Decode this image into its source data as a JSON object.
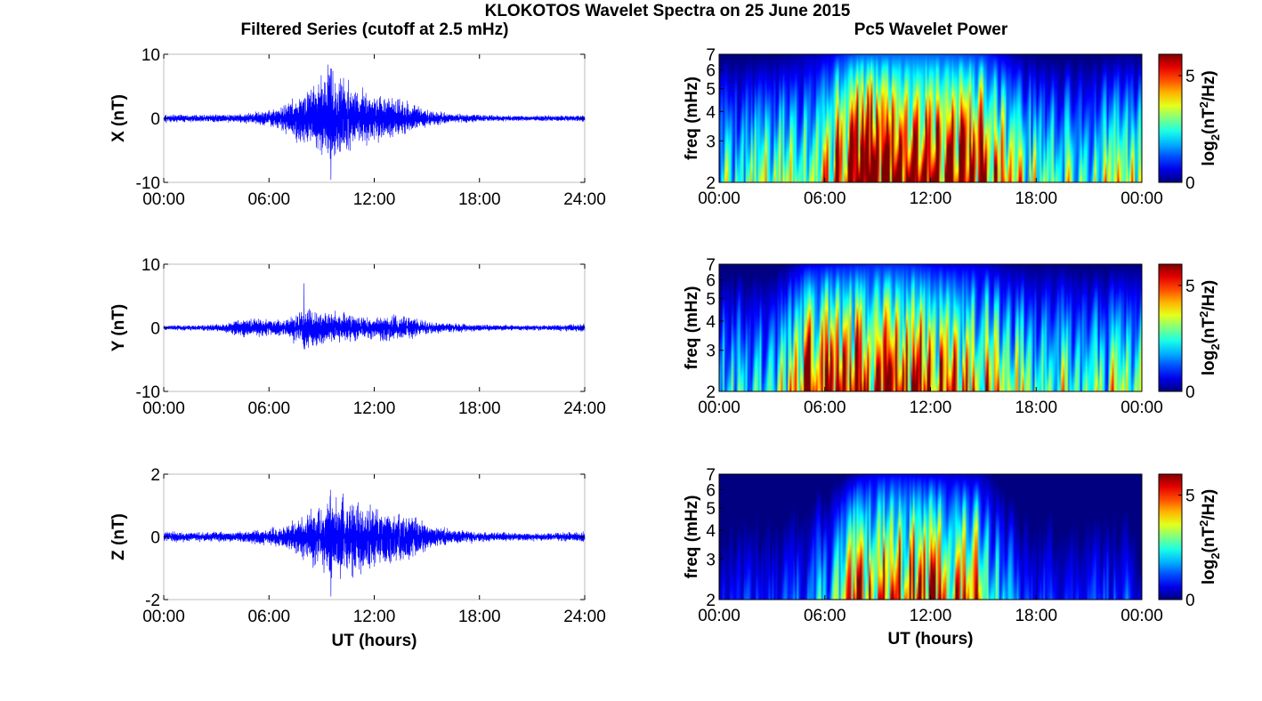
{
  "figure": {
    "title": "KLOKOTOS Wavelet Spectra on 25 June 2015",
    "left_title": "Filtered Series (cutoff at 2.5 mHz)",
    "right_title": "Pc5 Wavelet Power"
  },
  "chart_data": [
    {
      "type": "line",
      "panel": "filtered-x",
      "ylabel": "X (nT)",
      "xlabel": "",
      "ylim": [
        -10,
        10
      ],
      "yticks": [
        "10",
        "0",
        "-10"
      ],
      "xlim": [
        0,
        24
      ],
      "xticks": [
        "00:00",
        "06:00",
        "12:00",
        "18:00",
        "24:00"
      ],
      "color": "#0000ff",
      "envelope_hours": [
        0,
        2,
        4,
        5,
        6,
        7,
        8,
        9,
        9.5,
        10,
        11,
        12,
        13,
        14,
        15,
        16,
        18,
        20,
        22,
        24
      ],
      "envelope_amp": [
        0.6,
        0.5,
        0.6,
        0.9,
        1.2,
        2.0,
        4.0,
        6.0,
        8.0,
        6.0,
        4.5,
        3.5,
        3.0,
        2.5,
        1.2,
        0.8,
        0.5,
        0.4,
        0.4,
        0.5
      ],
      "peak_max": 7.8,
      "peak_min": -9.6
    },
    {
      "type": "line",
      "panel": "filtered-y",
      "ylabel": "Y (nT)",
      "xlabel": "",
      "ylim": [
        -10,
        10
      ],
      "yticks": [
        "10",
        "0",
        "-10"
      ],
      "xlim": [
        0,
        24
      ],
      "xticks": [
        "00:00",
        "06:00",
        "12:00",
        "18:00",
        "24:00"
      ],
      "color": "#0000ff",
      "envelope_hours": [
        0,
        2,
        3.5,
        4.5,
        6,
        7,
        8,
        9,
        10,
        11,
        12,
        13,
        14,
        15,
        16,
        18,
        20,
        22,
        24
      ],
      "envelope_amp": [
        0.4,
        0.4,
        0.6,
        1.5,
        1.3,
        1.2,
        3.0,
        2.5,
        2.2,
        2.0,
        1.6,
        2.0,
        1.6,
        1.0,
        0.7,
        0.5,
        0.4,
        0.4,
        0.6
      ],
      "peak_max": 7.0,
      "peak_min": -2.8
    },
    {
      "type": "line",
      "panel": "filtered-z",
      "ylabel": "Z (nT)",
      "xlabel": "UT (hours)",
      "ylim": [
        -2,
        2
      ],
      "yticks": [
        "2",
        "0",
        "-2"
      ],
      "xlim": [
        0,
        24
      ],
      "xticks": [
        "00:00",
        "06:00",
        "12:00",
        "18:00",
        "24:00"
      ],
      "color": "#0000ff",
      "envelope_hours": [
        0,
        2,
        4,
        5,
        6,
        7,
        8,
        9,
        9.5,
        10,
        11,
        12,
        13,
        14,
        15,
        16,
        18,
        20,
        22,
        24
      ],
      "envelope_amp": [
        0.15,
        0.15,
        0.15,
        0.2,
        0.25,
        0.35,
        0.7,
        1.0,
        1.4,
        1.2,
        1.1,
        0.9,
        0.8,
        0.7,
        0.4,
        0.25,
        0.15,
        0.12,
        0.12,
        0.15
      ],
      "peak_max": 1.5,
      "peak_min": -1.9
    },
    {
      "type": "heatmap",
      "panel": "wavelet-x",
      "ylabel": "freq (mHz)",
      "xlabel": "",
      "y_scale": "log",
      "ylim": [
        2,
        7
      ],
      "yticks": [
        "7",
        "6",
        "5",
        "4",
        "3",
        "2"
      ],
      "xlim": [
        0,
        24
      ],
      "xticks": [
        "00:00",
        "06:00",
        "12:00",
        "18:00",
        "00:00"
      ],
      "colormap": "jet",
      "clim": [
        0,
        6
      ],
      "colorbar_label": "log2(nT2/Hz)",
      "colorbar_ticks": [
        "5",
        "0"
      ],
      "activity_hours": [
        0,
        2,
        3,
        4,
        5,
        6,
        7,
        8,
        9,
        10,
        11,
        12,
        13,
        14,
        15,
        16,
        17,
        18,
        19,
        20,
        21,
        22,
        23,
        24
      ],
      "activity_level": [
        0.55,
        0.55,
        0.6,
        0.65,
        0.8,
        0.9,
        1.25,
        1.5,
        1.5,
        1.5,
        1.5,
        1.5,
        1.45,
        1.4,
        1.3,
        1.0,
        0.7,
        0.6,
        0.55,
        0.55,
        0.55,
        0.6,
        0.65,
        0.6
      ]
    },
    {
      "type": "heatmap",
      "panel": "wavelet-y",
      "ylabel": "freq (mHz)",
      "xlabel": "",
      "y_scale": "log",
      "ylim": [
        2,
        7
      ],
      "yticks": [
        "7",
        "6",
        "5",
        "4",
        "3",
        "2"
      ],
      "xlim": [
        0,
        24
      ],
      "xticks": [
        "00:00",
        "06:00",
        "12:00",
        "18:00",
        "00:00"
      ],
      "colormap": "jet",
      "clim": [
        0,
        6
      ],
      "colorbar_label": "log2(nT2/Hz)",
      "colorbar_ticks": [
        "5",
        "0"
      ],
      "activity_hours": [
        0,
        2,
        3,
        4,
        5,
        6,
        7,
        8,
        9,
        10,
        11,
        12,
        13,
        14,
        15,
        16,
        17,
        18,
        19,
        20,
        21,
        22,
        23,
        24
      ],
      "activity_level": [
        0.5,
        0.45,
        0.45,
        0.7,
        1.05,
        1.1,
        1.15,
        1.2,
        1.25,
        1.25,
        1.2,
        1.1,
        1.0,
        1.0,
        0.95,
        0.75,
        0.65,
        0.6,
        0.65,
        0.6,
        0.55,
        0.55,
        0.6,
        0.6
      ]
    },
    {
      "type": "heatmap",
      "panel": "wavelet-z",
      "ylabel": "freq (mHz)",
      "xlabel": "UT (hours)",
      "y_scale": "log",
      "ylim": [
        2,
        7
      ],
      "yticks": [
        "7",
        "6",
        "5",
        "4",
        "3",
        "2"
      ],
      "xlim": [
        0,
        24
      ],
      "xticks": [
        "00:00",
        "06:00",
        "12:00",
        "18:00",
        "00:00"
      ],
      "colormap": "jet",
      "clim": [
        0,
        6
      ],
      "colorbar_label": "log2(nT2/Hz)",
      "colorbar_ticks": [
        "5",
        "0"
      ],
      "activity_hours": [
        0,
        2,
        3,
        4,
        5,
        6,
        7,
        8,
        9,
        10,
        11,
        12,
        13,
        14,
        15,
        16,
        17,
        18,
        19,
        20,
        21,
        22,
        23,
        24
      ],
      "activity_level": [
        0.15,
        0.2,
        0.15,
        0.2,
        0.3,
        0.35,
        0.55,
        0.9,
        1.05,
        1.1,
        1.05,
        1.0,
        0.95,
        0.9,
        0.8,
        0.45,
        0.2,
        0.15,
        0.2,
        0.15,
        0.15,
        0.2,
        0.2,
        0.15
      ]
    }
  ]
}
